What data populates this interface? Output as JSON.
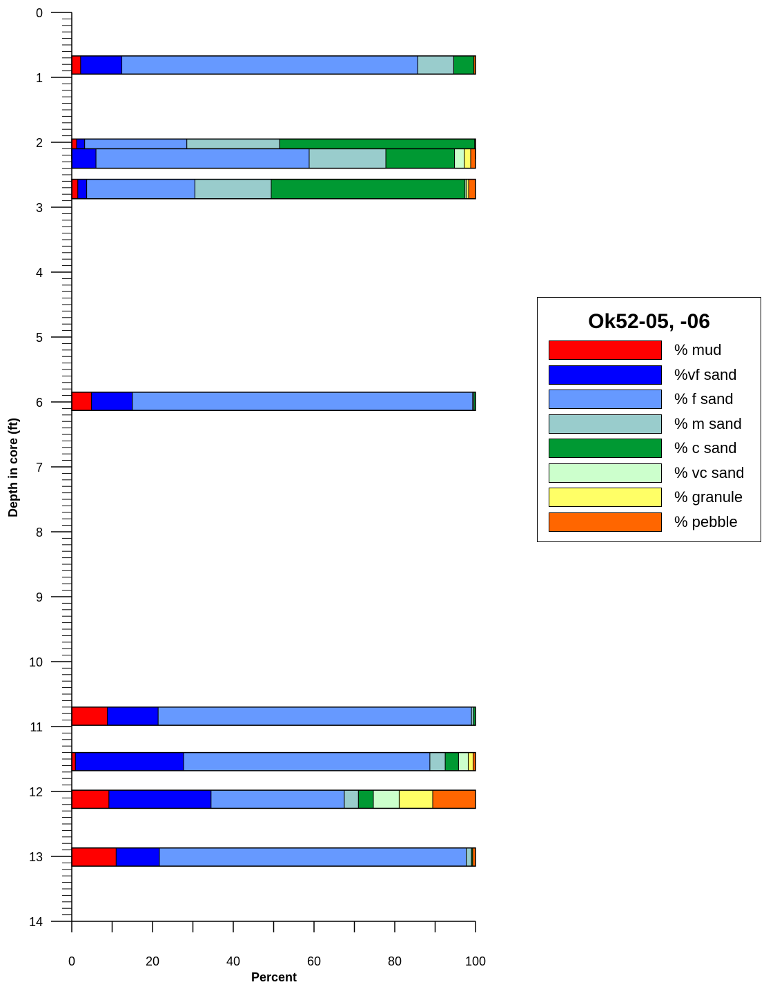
{
  "chart_data": {
    "type": "bar",
    "orientation": "horizontal-stacked",
    "xlabel": "Percent",
    "ylabel": "Depth in core (ft)",
    "xlim": [
      0,
      100
    ],
    "ylim": [
      0,
      14
    ],
    "y_inverted": true,
    "x_ticks": [
      0,
      20,
      40,
      60,
      80,
      100
    ],
    "y_ticks": [
      0,
      1,
      2,
      3,
      4,
      5,
      6,
      7,
      8,
      9,
      10,
      11,
      12,
      13,
      14
    ],
    "grid": false,
    "legend": {
      "title": "Ok52-05, -06",
      "placement": "right",
      "entries": [
        {
          "label": "% mud",
          "color": "#ff0000"
        },
        {
          "label": "%vf sand",
          "color": "#0000ff"
        },
        {
          "label": "% f sand",
          "color": "#6699ff"
        },
        {
          "label": "% m sand",
          "color": "#99cccc"
        },
        {
          "label": "% c sand",
          "color": "#009933"
        },
        {
          "label": "% vc sand",
          "color": "#ccffcc"
        },
        {
          "label": "% granule",
          "color": "#ffff66"
        },
        {
          "label": "% pebble",
          "color": "#ff6600"
        }
      ]
    },
    "samples": [
      {
        "depth_top": 0.67,
        "depth_bottom": 0.95,
        "values": [
          2.2,
          10.2,
          73.3,
          8.9,
          5.0,
          0,
          0,
          0.4
        ]
      },
      {
        "depth_top": 1.95,
        "depth_bottom": 2.25,
        "values": [
          1.2,
          2.0,
          25.3,
          23.0,
          48.3,
          0,
          0,
          0.2
        ]
      },
      {
        "depth_top": 2.1,
        "depth_bottom": 2.4,
        "values": [
          0,
          6.0,
          52.8,
          19.0,
          17.0,
          2.4,
          1.6,
          1.2
        ]
      },
      {
        "depth_top": 2.57,
        "depth_bottom": 2.87,
        "values": [
          1.5,
          2.2,
          26.8,
          18.9,
          48.0,
          0.4,
          0.5,
          1.7
        ]
      },
      {
        "depth_top": 5.85,
        "depth_bottom": 6.13,
        "values": [
          4.9,
          10.1,
          84.3,
          0.3,
          0.4,
          0,
          0,
          0
        ]
      },
      {
        "depth_top": 10.7,
        "depth_bottom": 10.98,
        "values": [
          8.8,
          12.6,
          77.6,
          0.5,
          0.5,
          0,
          0,
          0
        ]
      },
      {
        "depth_top": 11.4,
        "depth_bottom": 11.68,
        "values": [
          0.9,
          26.8,
          61.0,
          3.8,
          3.3,
          2.4,
          1.2,
          0.6
        ]
      },
      {
        "depth_top": 11.98,
        "depth_bottom": 12.26,
        "values": [
          9.2,
          25.3,
          33.0,
          3.5,
          3.7,
          6.4,
          8.3,
          10.6
        ]
      },
      {
        "depth_top": 12.87,
        "depth_bottom": 13.15,
        "values": [
          11.0,
          10.7,
          76.0,
          1.3,
          0.3,
          0,
          0,
          0.7
        ]
      }
    ]
  }
}
